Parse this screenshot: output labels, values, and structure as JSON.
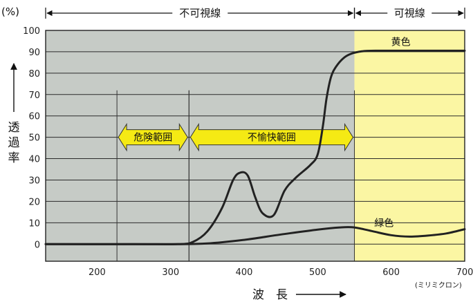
{
  "chart_data": {
    "type": "line",
    "y_unit": "(%)",
    "ylabel": "透過率",
    "xlabel": "波　長",
    "x_unit": "(ミリミクロン)",
    "xlim": [
      130,
      700
    ],
    "ylim": [
      -8,
      100
    ],
    "x_ticks": [
      200,
      300,
      400,
      500,
      600,
      700
    ],
    "y_ticks": [
      0,
      10,
      20,
      30,
      40,
      50,
      60,
      70,
      80,
      90,
      100
    ],
    "grid": true,
    "regions": [
      {
        "label": "不可視線",
        "x_start": 130,
        "x_end": 550,
        "color": "#c6cbc6"
      },
      {
        "label": "可視線",
        "x_start": 550,
        "x_end": 700,
        "color": "#fbf6a3"
      }
    ],
    "ranges": [
      {
        "label": "危険範囲",
        "x_start": 227,
        "x_end": 325
      },
      {
        "label": "不愉快範囲",
        "x_start": 325,
        "x_end": 550
      }
    ],
    "arrow_color": "#f5ea14",
    "series": [
      {
        "name": "黄色",
        "color": "#222222",
        "x": [
          130,
          250,
          310,
          330,
          350,
          370,
          385,
          395,
          405,
          415,
          425,
          440,
          455,
          470,
          490,
          500,
          507,
          512,
          518,
          525,
          535,
          545,
          560,
          580,
          620,
          700
        ],
        "y": [
          0,
          0,
          0,
          1,
          6,
          17,
          30,
          33.5,
          32,
          22,
          14.5,
          13.5,
          25,
          31,
          37,
          42,
          55,
          68,
          78,
          83,
          87,
          89,
          90.2,
          90.5,
          90.5,
          90.5
        ]
      },
      {
        "name": "緑色",
        "color": "#222222",
        "x": [
          130,
          300,
          350,
          400,
          450,
          500,
          530,
          550,
          575,
          600,
          625,
          650,
          675,
          700
        ],
        "y": [
          0,
          0,
          0.3,
          2,
          4.5,
          6.8,
          7.8,
          7.8,
          6,
          4.2,
          3.5,
          4,
          5,
          7
        ]
      }
    ]
  }
}
